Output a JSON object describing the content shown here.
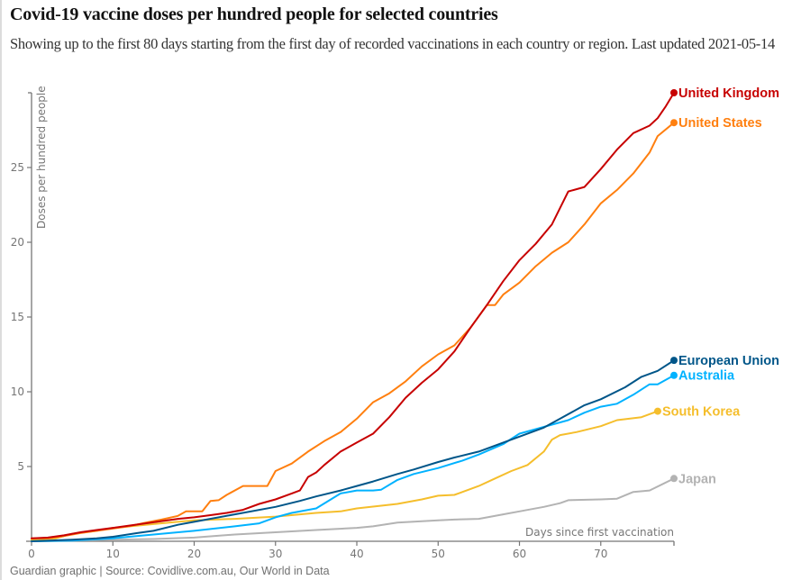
{
  "title": "Covid-19 vaccine doses per hundred people for selected countries",
  "subtitle": "Showing up to the first 80 days starting from the first day of recorded vaccinations in each country or region. Last updated 2021-05-14",
  "footer": "Guardian graphic | Source: Covidlive.com.au, Our World in Data",
  "chart_data": {
    "type": "line",
    "title": "Covid-19 vaccine doses per hundred people for selected countries",
    "xlabel": "Days since first vaccination",
    "ylabel": "Doses per hundred people",
    "xlim": [
      0,
      79
    ],
    "ylim": [
      0,
      30
    ],
    "xticks": [
      0,
      10,
      20,
      30,
      40,
      50,
      60,
      70
    ],
    "xtick_labels": [
      "0",
      "10",
      "20",
      "30",
      "40",
      "50",
      "60",
      "70"
    ],
    "yticks": [
      5,
      10,
      15,
      20,
      25
    ],
    "ytick_labels": [
      "5",
      "10",
      "15",
      "20",
      "25"
    ],
    "grid": false,
    "legend": "direct-labels-at-line-ends",
    "series": [
      {
        "name": "Japan",
        "color": "#b3b3b3",
        "x": [
          0,
          5,
          10,
          15,
          20,
          25,
          30,
          35,
          40,
          42,
          45,
          50,
          52,
          55,
          58,
          60,
          63,
          65,
          66,
          70,
          72,
          74,
          76,
          79
        ],
        "y": [
          0.0,
          0.05,
          0.1,
          0.15,
          0.25,
          0.45,
          0.6,
          0.75,
          0.9,
          1.0,
          1.25,
          1.4,
          1.45,
          1.5,
          1.8,
          2.0,
          2.3,
          2.55,
          2.75,
          2.8,
          2.85,
          3.3,
          3.4,
          4.2
        ]
      },
      {
        "name": "South Korea",
        "color": "#f5be2c",
        "x": [
          0,
          3,
          5,
          8,
          10,
          13,
          15,
          18,
          20,
          25,
          30,
          35,
          38,
          40,
          45,
          48,
          50,
          52,
          55,
          57,
          59,
          61,
          63,
          64,
          65,
          67,
          70,
          72,
          75,
          77
        ],
        "y": [
          0.1,
          0.2,
          0.5,
          0.7,
          0.9,
          1.05,
          1.15,
          1.3,
          1.4,
          1.5,
          1.65,
          1.9,
          2.0,
          2.2,
          2.5,
          2.8,
          3.05,
          3.1,
          3.7,
          4.2,
          4.7,
          5.1,
          6.0,
          6.8,
          7.1,
          7.3,
          7.7,
          8.1,
          8.3,
          8.7
        ]
      },
      {
        "name": "Australia",
        "color": "#00b2ff",
        "x": [
          0,
          5,
          10,
          15,
          20,
          25,
          28,
          30,
          32,
          35,
          38,
          40,
          42,
          43,
          45,
          47,
          50,
          53,
          55,
          58,
          60,
          62,
          64,
          66,
          68,
          70,
          72,
          74,
          76,
          77,
          79
        ],
        "y": [
          0.0,
          0.05,
          0.2,
          0.45,
          0.7,
          1.0,
          1.2,
          1.6,
          1.9,
          2.2,
          3.2,
          3.4,
          3.4,
          3.45,
          4.1,
          4.5,
          4.9,
          5.4,
          5.8,
          6.5,
          7.2,
          7.5,
          7.8,
          8.1,
          8.6,
          9.0,
          9.2,
          9.8,
          10.5,
          10.5,
          11.1
        ]
      },
      {
        "name": "European Union",
        "color": "#005689",
        "x": [
          0,
          5,
          8,
          10,
          13,
          15,
          18,
          20,
          25,
          30,
          33,
          35,
          38,
          40,
          42,
          45,
          47,
          50,
          52,
          55,
          58,
          60,
          63,
          65,
          68,
          70,
          73,
          75,
          77,
          79
        ],
        "y": [
          0.0,
          0.1,
          0.2,
          0.3,
          0.55,
          0.7,
          1.1,
          1.3,
          1.8,
          2.3,
          2.7,
          3.0,
          3.4,
          3.7,
          4.0,
          4.5,
          4.8,
          5.3,
          5.6,
          6.0,
          6.6,
          7.0,
          7.6,
          8.2,
          9.1,
          9.5,
          10.3,
          11.0,
          11.4,
          12.1
        ]
      },
      {
        "name": "United States",
        "color": "#ff7f0f",
        "x": [
          0,
          2,
          4,
          6,
          8,
          10,
          12,
          14,
          16,
          18,
          19,
          21,
          22,
          23,
          24,
          26,
          29,
          30,
          32,
          34,
          36,
          38,
          40,
          42,
          44,
          46,
          48,
          50,
          52,
          54,
          56,
          57,
          58,
          60,
          62,
          64,
          66,
          68,
          70,
          72,
          74,
          76,
          77,
          79
        ],
        "y": [
          0.2,
          0.2,
          0.35,
          0.55,
          0.7,
          0.85,
          1.0,
          1.25,
          1.45,
          1.7,
          2.0,
          2.0,
          2.7,
          2.75,
          3.1,
          3.7,
          3.7,
          4.7,
          5.2,
          6.0,
          6.7,
          7.3,
          8.2,
          9.3,
          9.9,
          10.7,
          11.7,
          12.5,
          13.1,
          14.3,
          15.8,
          15.8,
          16.5,
          17.3,
          18.4,
          19.3,
          20.0,
          21.2,
          22.6,
          23.5,
          24.6,
          26.0,
          27.1,
          28.0
        ]
      },
      {
        "name": "United Kingdom",
        "color": "#c70000",
        "x": [
          0,
          2,
          4,
          6,
          8,
          10,
          12,
          14,
          16,
          18,
          20,
          22,
          24,
          26,
          28,
          30,
          32,
          33,
          34,
          35,
          36,
          38,
          40,
          42,
          44,
          46,
          48,
          50,
          52,
          54,
          56,
          58,
          60,
          62,
          64,
          66,
          68,
          70,
          72,
          74,
          76,
          77,
          78,
          79
        ],
        "y": [
          0.2,
          0.25,
          0.4,
          0.6,
          0.75,
          0.9,
          1.05,
          1.2,
          1.35,
          1.5,
          1.6,
          1.75,
          1.9,
          2.1,
          2.5,
          2.8,
          3.2,
          3.4,
          4.3,
          4.6,
          5.1,
          6.0,
          6.6,
          7.2,
          8.3,
          9.6,
          10.6,
          11.5,
          12.7,
          14.3,
          15.8,
          17.4,
          18.8,
          19.9,
          21.2,
          23.4,
          23.7,
          24.9,
          26.2,
          27.3,
          27.8,
          28.3,
          29.1,
          30.0
        ]
      }
    ]
  }
}
